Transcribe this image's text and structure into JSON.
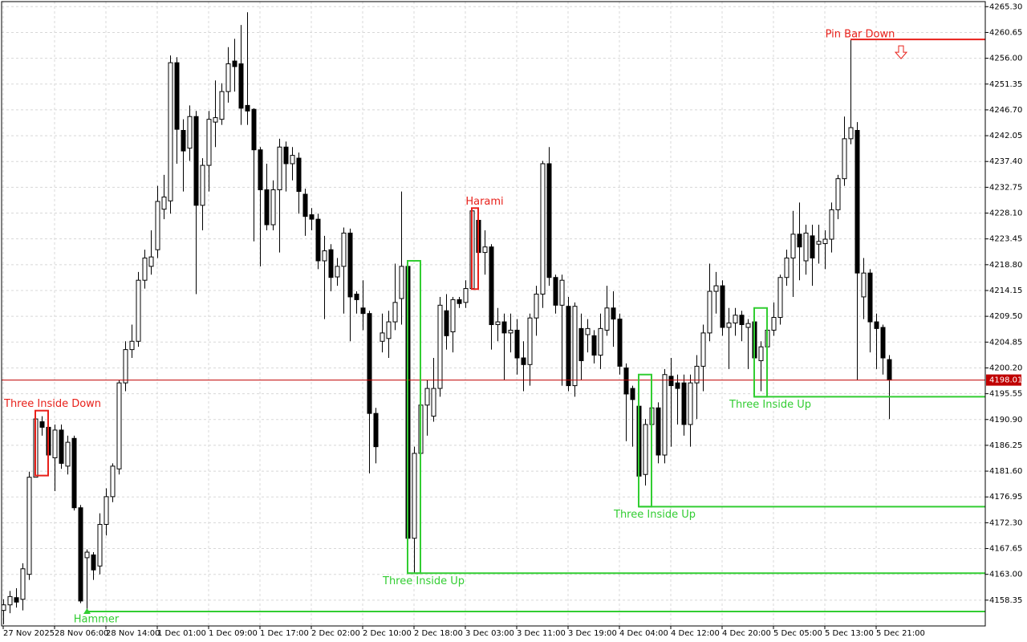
{
  "chart_data": {
    "type": "candlestick",
    "categories": [
      "27 Nov 2025",
      null,
      null,
      null,
      null,
      null,
      null,
      null,
      "28 Nov 06:00",
      null,
      null,
      null,
      null,
      null,
      null,
      null,
      "28 Nov 14:00",
      null,
      null,
      null,
      null,
      null,
      null,
      null,
      "1 Dec 01:00",
      null,
      null,
      null,
      null,
      null,
      null,
      null,
      "1 Dec 09:00",
      null,
      null,
      null,
      null,
      null,
      null,
      null,
      "1 Dec 17:00",
      null,
      null,
      null,
      null,
      null,
      null,
      null,
      "2 Dec 02:00",
      null,
      null,
      null,
      null,
      null,
      null,
      null,
      "2 Dec 10:00",
      null,
      null,
      null,
      null,
      null,
      null,
      null,
      "2 Dec 18:00",
      null,
      null,
      null,
      null,
      null,
      null,
      null,
      "3 Dec 03:00",
      null,
      null,
      null,
      null,
      null,
      null,
      null,
      "3 Dec 11:00",
      null,
      null,
      null,
      null,
      null,
      null,
      null,
      "3 Dec 19:00",
      null,
      null,
      null,
      null,
      null,
      null,
      null,
      "4 Dec 04:00",
      null,
      null,
      null,
      null,
      null,
      null,
      null,
      "4 Dec 12:00",
      null,
      null,
      null,
      null,
      null,
      null,
      null,
      "4 Dec 20:00",
      null,
      null,
      null,
      null,
      null,
      null,
      null,
      "5 Dec 05:00",
      null,
      null,
      null,
      null,
      null,
      null,
      null,
      "5 Dec 13:00",
      null,
      null,
      null,
      null,
      null,
      null,
      null,
      "5 Dec 21:00",
      null,
      null
    ],
    "open": [
      4156.5,
      4157.5,
      4158.8,
      4158.5,
      4163,
      4180.5,
      4190.5,
      4189.5,
      4184,
      4189,
      4182.5,
      4187.5,
      4175,
      4166,
      4166.5,
      4164.5,
      4172,
      4177,
      4182,
      4197.5,
      4203.5,
      4205,
      4216,
      4218.5,
      4221.5,
      4228.8,
      4230.3,
      4255.2,
      4243,
      4239.8,
      4245.5,
      4229.5,
      4236.7,
      4244.5,
      4245,
      4250,
      4255.5,
      4255,
      4247.5,
      4246.8,
      4239.5,
      4232.3,
      4226,
      4232.3,
      4240,
      4237,
      4238,
      4231.5,
      4227.8,
      4227,
      4219.5,
      4221.5,
      4216.6,
      4218.5,
      4224.5,
      4213.5,
      4211,
      4210,
      4192,
      4205,
      4205.5,
      4208.5,
      4212.7,
      4218.5,
      4169.5,
      4184.8,
      4193.5,
      4191.5,
      4196.5,
      4210.5,
      4206.7,
      4212.5,
      4212,
      4214.5,
      4226.8,
      4221,
      4222,
      4208,
      4208.5,
      4206.5,
      4207,
      4202,
      4200.8,
      4209.2,
      4213.5,
      4237,
      4216.5,
      4211.5,
      4211.3,
      4197,
      4207.3,
      4206.2,
      4206,
      4202.5,
      4207,
      4211,
      4209,
      4200.2,
      4196.5,
      4193.3,
      4181,
      4190,
      4193,
      4184.5,
      4198.7,
      4197.5,
      4197.5,
      4190,
      4197.5,
      4200.5,
      4206.5,
      4214,
      4215,
      4207.5,
      4208.3,
      4209.7,
      4207.5,
      4208.5,
      4201.5,
      4204,
      4207,
      4209.3,
      4216.5,
      4220,
      4224.3,
      4219.5,
      4224,
      4222.5,
      4222.6,
      4223.4,
      4228.7,
      4234.3,
      4241.5,
      4243,
      4213,
      4217.3,
      4208.5,
      4207.5,
      4201.7
    ],
    "high": [
      4158.5,
      4160,
      4160.5,
      4165,
      4181.5,
      4192.5,
      4191.5,
      4190,
      4190,
      4190,
      4188,
      4188,
      4175.5,
      4167.5,
      4167,
      4174,
      4178.5,
      4183,
      4198,
      4205,
      4208,
      4217.5,
      4221.5,
      4225,
      4233,
      4235,
      4256.5,
      4256.2,
      4245,
      4247.5,
      4246.5,
      4238,
      4246.5,
      4252,
      4251.5,
      4258,
      4259.5,
      4262,
      4264.3,
      4247,
      4240,
      4237,
      4234,
      4241.5,
      4241,
      4240,
      4239,
      4232.5,
      4229,
      4228,
      4224,
      4222.5,
      4220,
      4225.5,
      4225.3,
      4214,
      4216,
      4210.5,
      4193,
      4210,
      4210.5,
      4219,
      4232,
      4219.5,
      4186,
      4195,
      4198,
      4202,
      4213,
      4213.5,
      4213,
      4213,
      4216,
      4229,
      4229,
      4225,
      4222.5,
      4211,
      4210,
      4210,
      4209,
      4205,
      4210,
      4215,
      4237.5,
      4240,
      4217,
      4217,
      4213,
      4212,
      4210,
      4209,
      4207,
      4210,
      4215,
      4214,
      4210,
      4201,
      4197,
      4194,
      4191,
      4199,
      4194,
      4200,
      4202,
      4199,
      4199,
      4199,
      4202.5,
      4208,
      4219,
      4217.5,
      4216,
      4211,
      4211,
      4210.5,
      4209,
      4210.5,
      4205,
      4211,
      4212,
      4217,
      4221.5,
      4228.5,
      4230,
      4226,
      4226,
      4226,
      4225,
      4230,
      4235,
      4245.5,
      4259.4,
      4244.5,
      4220,
      4218,
      4210,
      4208,
      4202.5
    ],
    "low": [
      4154,
      4156,
      4157,
      4156.5,
      4162,
      4180.8,
      4188,
      4181,
      4178,
      4182,
      4181,
      4174.5,
      4157.8,
      4156.3,
      4162,
      4163,
      4170,
      4176,
      4181,
      4196,
      4202,
      4204,
      4214.5,
      4217,
      4220,
      4227,
      4228,
      4237,
      4232,
      4237.5,
      4213.5,
      4225,
      4232,
      4240,
      4244,
      4248,
      4250,
      4244,
      4244,
      4223,
      4218.5,
      4225,
      4225,
      4221,
      4232,
      4234,
      4228,
      4224,
      4225,
      4218,
      4209,
      4214,
      4215,
      4210,
      4205,
      4210,
      4207,
      4181.2,
      4183,
      4203,
      4202,
      4207,
      4208,
      4165,
      4163.2,
      4180.5,
      4188,
      4190.5,
      4195,
      4203.5,
      4203,
      4211,
      4211,
      4214.4,
      4215,
      4217,
      4203.5,
      4205,
      4198,
      4203,
      4199,
      4196,
      4197,
      4206,
      4211,
      4215,
      4210,
      4197,
      4196,
      4195,
      4198,
      4203,
      4201,
      4200,
      4206,
      4204,
      4199,
      4187,
      4186,
      4175.2,
      4179,
      4186,
      4183,
      4183,
      4186,
      4190,
      4188,
      4186,
      4191,
      4196,
      4205,
      4210,
      4206,
      4200,
      4206,
      4205,
      4200,
      4198,
      4196,
      4195,
      4206,
      4208,
      4215,
      4213,
      4216,
      4217,
      4215,
      4219,
      4218,
      4221,
      4227,
      4233,
      4240.5,
      4198,
      4209,
      4203,
      4200,
      4199,
      4191
    ],
    "close": [
      4157.5,
      4159,
      4158,
      4164,
      4180.5,
      4191,
      4189.5,
      4184.5,
      4189,
      4183,
      4186.8,
      4175,
      4158.2,
      4167,
      4163.8,
      4172,
      4177,
      4182.5,
      4197.5,
      4203.5,
      4205,
      4216,
      4220,
      4220.2,
      4230.2,
      4231,
      4255.2,
      4243.2,
      4239.3,
      4245.5,
      4229.5,
      4236.7,
      4245,
      4245.3,
      4250,
      4255,
      4254.5,
      4247,
      4246.5,
      4239.5,
      4232.3,
      4226,
      4232.3,
      4240,
      4237,
      4238.5,
      4232,
      4227.5,
      4227,
      4219.5,
      4221.3,
      4216.5,
      4218.5,
      4224.5,
      4213,
      4212.5,
      4210,
      4192,
      4186,
      4206.5,
      4208.5,
      4212,
      4218.5,
      4169.5,
      4184.8,
      4193.5,
      4196.5,
      4196.5,
      4211.5,
      4206,
      4212.5,
      4211.8,
      4214.5,
      4228.5,
      4221,
      4222,
      4208,
      4208.5,
      4206.5,
      4207,
      4202,
      4200.8,
      4209.2,
      4213.5,
      4237,
      4216.5,
      4211.5,
      4216,
      4197,
      4211.3,
      4201.5,
      4207.3,
      4202.5,
      4207.3,
      4211,
      4209,
      4200.5,
      4195.5,
      4194.5,
      4180.7,
      4190,
      4193,
      4184.5,
      4199,
      4197,
      4196.5,
      4190,
      4197.5,
      4200.5,
      4206.5,
      4214,
      4215,
      4207.5,
      4208.3,
      4209.7,
      4208,
      4208.2,
      4202,
      4204,
      4207,
      4209.3,
      4216.5,
      4220,
      4224.3,
      4222,
      4224.5,
      4220,
      4223,
      4223.4,
      4228.7,
      4234.3,
      4241.5,
      4243.5,
      4217.3,
      4217.3,
      4208.5,
      4207.3,
      4202,
      4198.01
    ],
    "up_color": "#ffffff",
    "down_color": "#000000",
    "last": 4198.01,
    "last_color": "#c00000",
    "ylim": [
      4153.7,
      4266.5
    ],
    "yticks": [
      {
        "value": 4265.3,
        "label": "4265.30"
      },
      {
        "value": 4260.65,
        "label": "4260.65"
      },
      {
        "value": 4256,
        "label": "4256.00"
      },
      {
        "value": 4251.35,
        "label": "4251.35"
      },
      {
        "value": 4246.7,
        "label": "4246.70"
      },
      {
        "value": 4242.05,
        "label": "4242.05"
      },
      {
        "value": 4237.4,
        "label": "4237.40"
      },
      {
        "value": 4232.75,
        "label": "4232.75"
      },
      {
        "value": 4228.1,
        "label": "4228.10"
      },
      {
        "value": 4223.45,
        "label": "4223.45"
      },
      {
        "value": 4218.8,
        "label": "4218.80"
      },
      {
        "value": 4214.15,
        "label": "4214.15"
      },
      {
        "value": 4209.5,
        "label": "4209.50"
      },
      {
        "value": 4204.85,
        "label": "4204.85"
      },
      {
        "value": 4200.2,
        "label": "4200.20"
      },
      {
        "value": 4195.55,
        "label": "4195.55"
      },
      {
        "value": 4190.9,
        "label": "4190.90"
      },
      {
        "value": 4186.25,
        "label": "4186.25"
      },
      {
        "value": 4181.6,
        "label": "4181.60"
      },
      {
        "value": 4176.95,
        "label": "4176.95"
      },
      {
        "value": 4172.3,
        "label": "4172.30"
      },
      {
        "value": 4167.65,
        "label": "4167.65"
      },
      {
        "value": 4163,
        "label": "4163.00"
      },
      {
        "value": 4158.35,
        "label": "4158.35"
      }
    ],
    "grid": true,
    "annotations": [
      {
        "label": "Three Inside Down",
        "color": "#e8201a",
        "candles": [
          5,
          7
        ],
        "box": true
      },
      {
        "label": "Hammer",
        "color": "#32cd32",
        "candles": [
          13,
          13
        ],
        "line": "low",
        "arrow": "up"
      },
      {
        "label": "Three Inside Up",
        "color": "#32cd32",
        "candles": [
          63,
          65
        ],
        "box": true,
        "line": "low"
      },
      {
        "label": "Harami",
        "color": "#e8201a",
        "candles": [
          73,
          74
        ],
        "box": true
      },
      {
        "label": "Three Inside Up",
        "color": "#32cd32",
        "candles": [
          99,
          101
        ],
        "box": true,
        "line": "low"
      },
      {
        "label": "Three Inside Up",
        "color": "#32cd32",
        "candles": [
          117,
          119
        ],
        "box": true,
        "line": "low"
      },
      {
        "label": "Pin Bar Down",
        "color": "#e8201a",
        "candles": [
          132,
          132
        ],
        "line": "high",
        "arrow": "down"
      }
    ]
  }
}
